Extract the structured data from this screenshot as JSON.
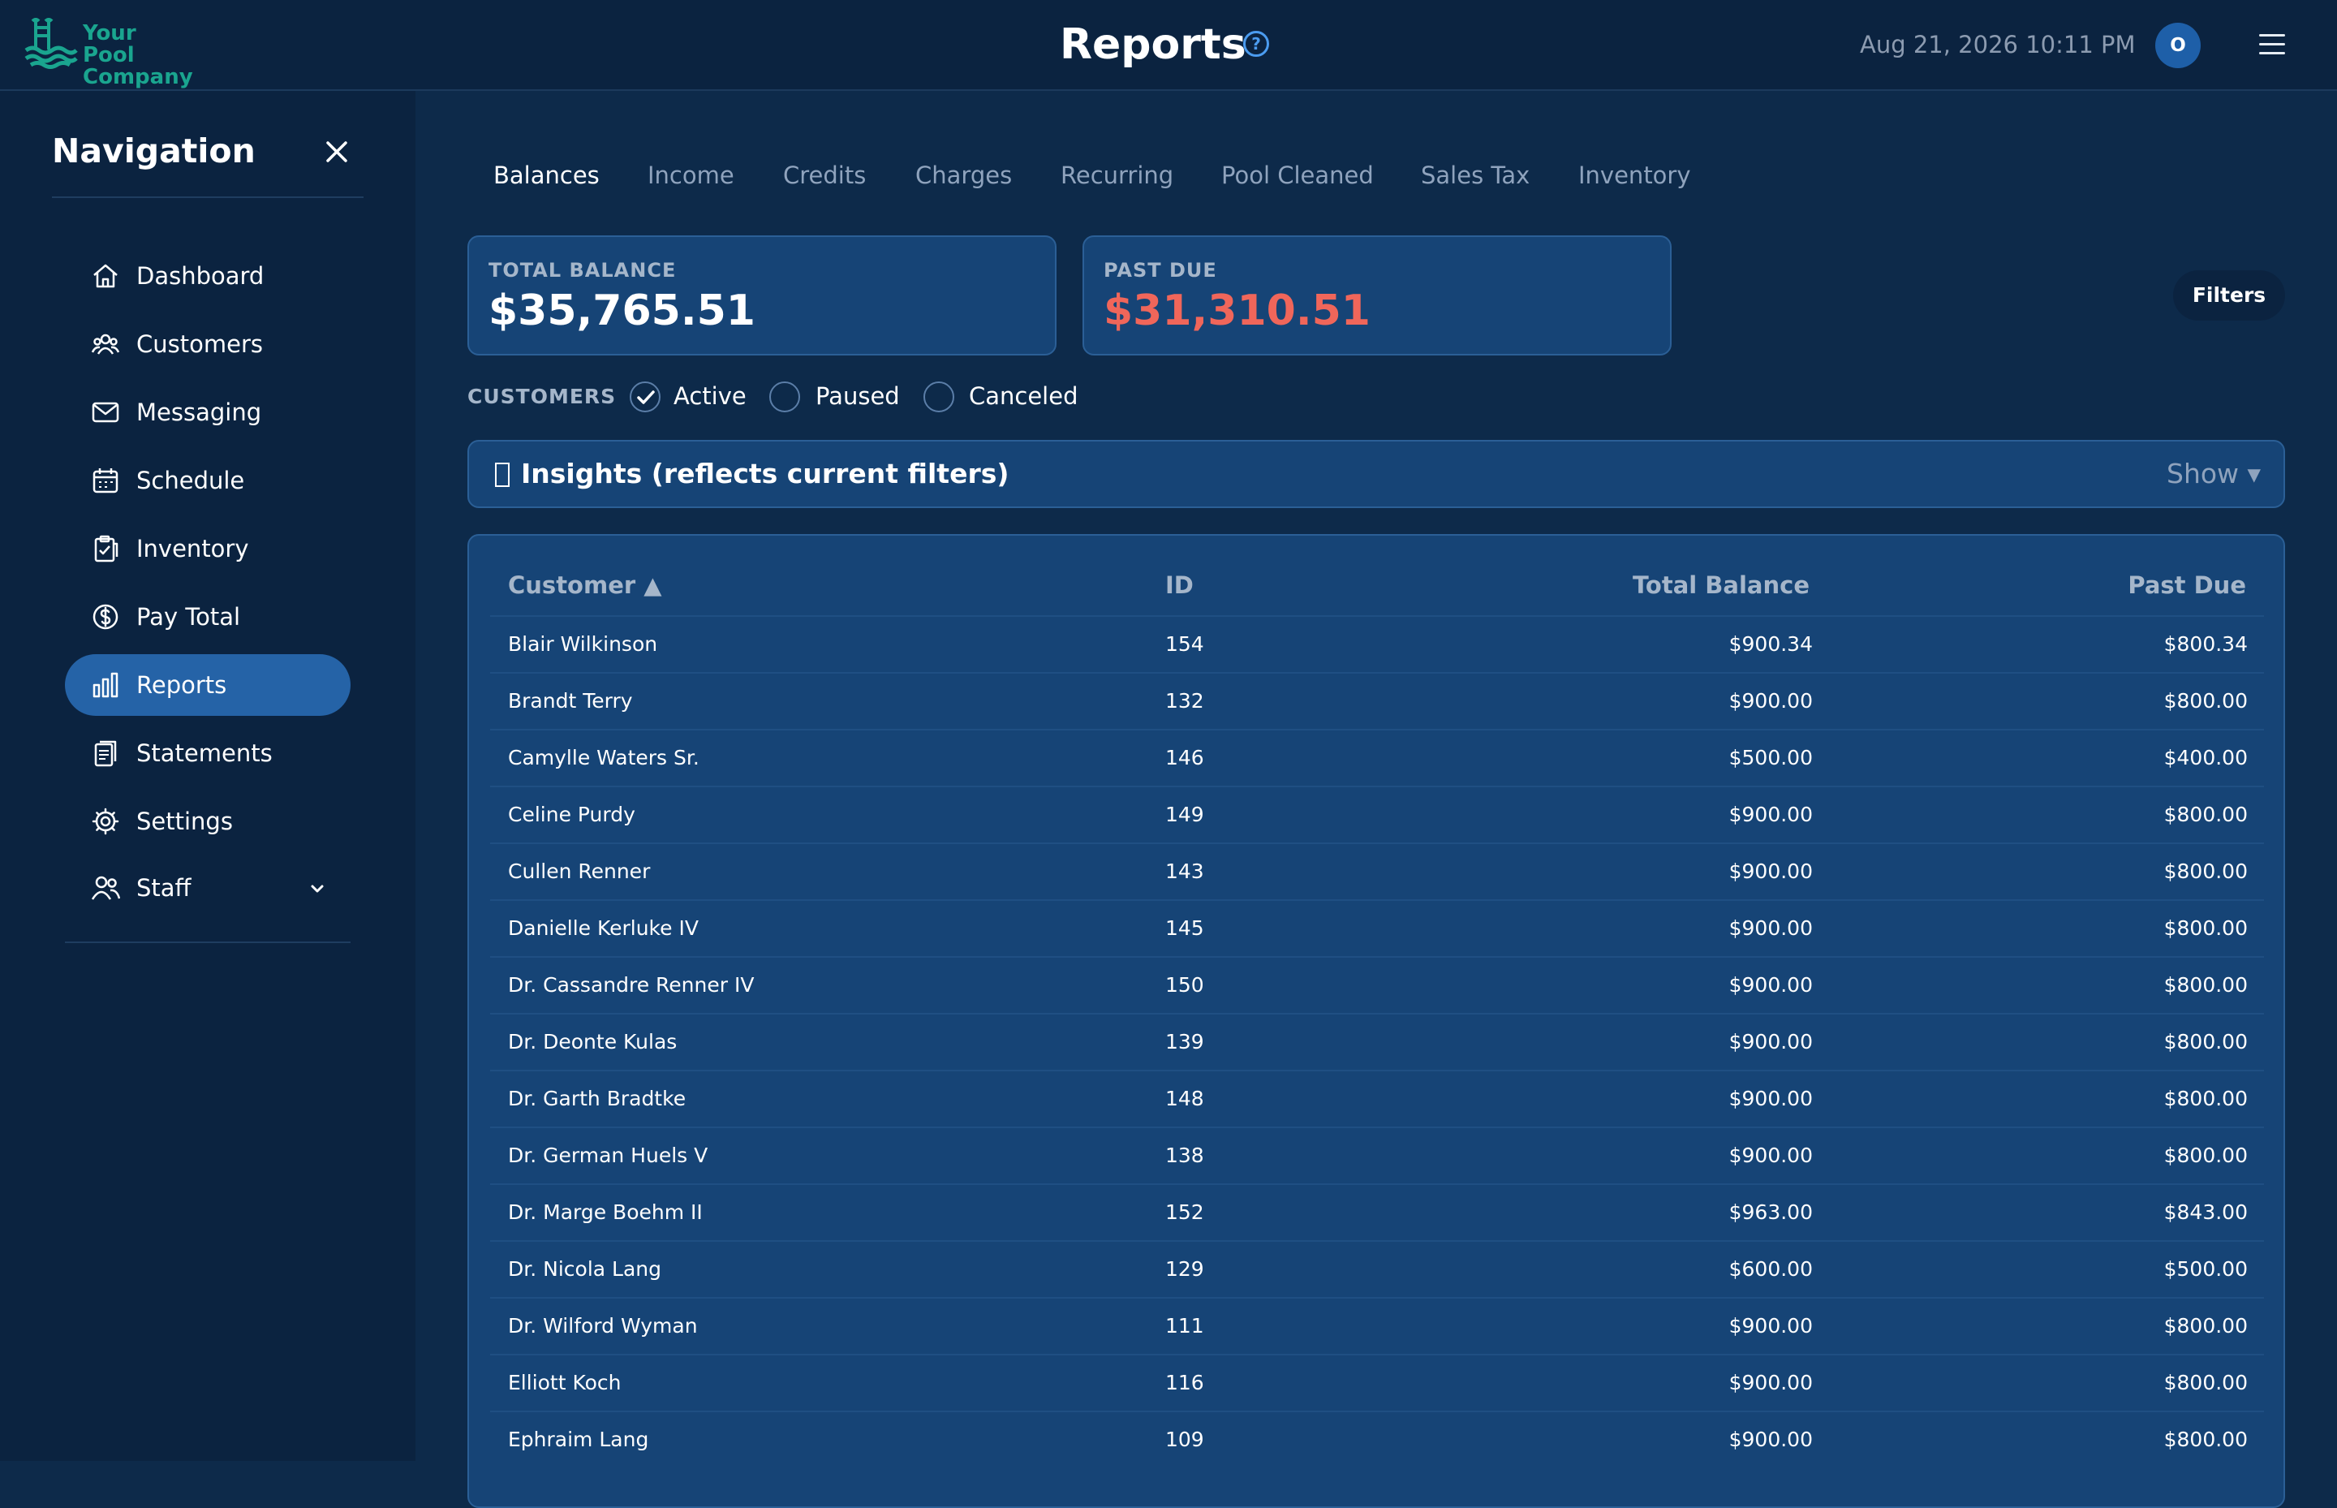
{
  "brand": {
    "logo_line1": "Your Pool",
    "logo_line2": "Company",
    "color": "#1aa58f"
  },
  "header": {
    "title": "Reports",
    "help_icon": "help-circle-icon",
    "datetime": "Aug 21, 2026 10:11 PM",
    "avatar_initial": "O",
    "menu_icon": "hamburger-menu-icon"
  },
  "sidebar": {
    "title": "Navigation",
    "close_icon": "close-icon",
    "items": [
      {
        "label": "Dashboard",
        "icon": "home-icon",
        "active": false
      },
      {
        "label": "Customers",
        "icon": "users-icon",
        "active": false
      },
      {
        "label": "Messaging",
        "icon": "mail-icon",
        "active": false
      },
      {
        "label": "Schedule",
        "icon": "calendar-icon",
        "active": false
      },
      {
        "label": "Inventory",
        "icon": "clipboard-check-icon",
        "active": false
      },
      {
        "label": "Pay Total",
        "icon": "dollar-circle-icon",
        "active": false
      },
      {
        "label": "Reports",
        "icon": "bar-chart-icon",
        "active": true
      },
      {
        "label": "Statements",
        "icon": "document-stack-icon",
        "active": false
      },
      {
        "label": "Settings",
        "icon": "gear-icon",
        "active": false
      },
      {
        "label": "Staff",
        "icon": "staff-icon",
        "active": false,
        "has_dropdown": true
      }
    ],
    "active_color": "#2563a7"
  },
  "tabs": [
    {
      "label": "Balances",
      "active": true
    },
    {
      "label": "Income",
      "active": false
    },
    {
      "label": "Credits",
      "active": false
    },
    {
      "label": "Charges",
      "active": false
    },
    {
      "label": "Recurring",
      "active": false
    },
    {
      "label": "Pool Cleaned",
      "active": false
    },
    {
      "label": "Sales Tax",
      "active": false
    },
    {
      "label": "Inventory",
      "active": false
    }
  ],
  "summary": {
    "total_balance_label": "TOTAL BALANCE",
    "total_balance_value": "$35,765.51",
    "past_due_label": "PAST DUE",
    "past_due_value": "$31,310.51",
    "past_due_color": "#f0665a"
  },
  "filters_button": "Filters",
  "customers_filter": {
    "label": "CUSTOMERS",
    "options": [
      {
        "label": "Active",
        "checked": true
      },
      {
        "label": "Paused",
        "checked": false
      },
      {
        "label": "Canceled",
        "checked": false
      }
    ]
  },
  "insights": {
    "icon": "lightbulb-icon",
    "label": "Insights (reflects current filters)",
    "toggle": "Show ▾"
  },
  "table": {
    "columns": [
      "Customer ▲",
      "ID",
      "Total Balance",
      "Past Due"
    ],
    "rows": [
      [
        "Blair Wilkinson",
        "154",
        "$900.34",
        "$800.34"
      ],
      [
        "Brandt Terry",
        "132",
        "$900.00",
        "$800.00"
      ],
      [
        "Camylle Waters Sr.",
        "146",
        "$500.00",
        "$400.00"
      ],
      [
        "Celine Purdy",
        "149",
        "$900.00",
        "$800.00"
      ],
      [
        "Cullen Renner",
        "143",
        "$900.00",
        "$800.00"
      ],
      [
        "Danielle Kerluke IV",
        "145",
        "$900.00",
        "$800.00"
      ],
      [
        "Dr. Cassandre Renner IV",
        "150",
        "$900.00",
        "$800.00"
      ],
      [
        "Dr. Deonte Kulas",
        "139",
        "$900.00",
        "$800.00"
      ],
      [
        "Dr. Garth Bradtke",
        "148",
        "$900.00",
        "$800.00"
      ],
      [
        "Dr. German Huels V",
        "138",
        "$900.00",
        "$800.00"
      ],
      [
        "Dr. Marge Boehm II",
        "152",
        "$963.00",
        "$843.00"
      ],
      [
        "Dr. Nicola Lang",
        "129",
        "$600.00",
        "$500.00"
      ],
      [
        "Dr. Wilford Wyman",
        "111",
        "$900.00",
        "$800.00"
      ],
      [
        "Elliott Koch",
        "116",
        "$900.00",
        "$800.00"
      ],
      [
        "Ephraim Lang",
        "109",
        "$900.00",
        "$800.00"
      ]
    ]
  }
}
